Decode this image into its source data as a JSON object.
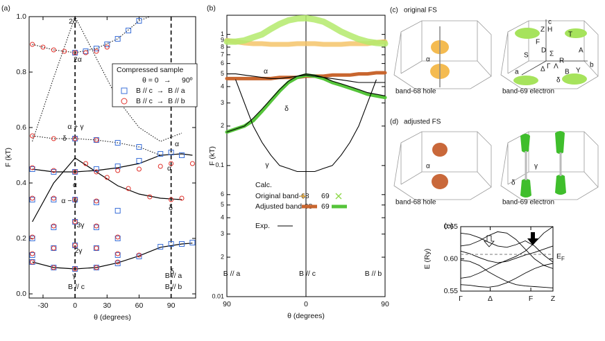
{
  "chart_data": [
    {
      "type": "scatter",
      "panel_label": "(a)",
      "xlabel": "θ (degrees)",
      "ylabel": "F (kT)",
      "xlim": [
        -43,
        113
      ],
      "ylim": [
        -0.015,
        1.0
      ],
      "xticks": [
        -30,
        0,
        30,
        60,
        90
      ],
      "yticks": [
        {
          "value": 0,
          "label": "0.0"
        },
        {
          "value": 0.2,
          "label": "0.2"
        },
        {
          "value": 0.4,
          "label": "0.4"
        },
        {
          "value": 0.6,
          "label": "0.6"
        },
        {
          "value": 0.8,
          "label": "0.8"
        },
        {
          "value": 1.0,
          "label": "1.0"
        }
      ],
      "vlines": [
        0,
        90
      ],
      "legend_title": "Compressed sample",
      "legend_header": [
        "θ = 0",
        "→",
        "90º"
      ],
      "series": [
        {
          "name": "B // c  →  B // a",
          "marker": "square",
          "color": "#3a6fd8",
          "x": [
            0,
            10,
            20,
            30,
            40,
            50,
            60,
            0,
            20,
            40,
            60,
            -40,
            -20,
            0,
            20,
            40,
            60,
            80,
            90,
            100,
            -40,
            -20,
            0,
            20,
            40,
            -40,
            -20,
            0,
            20,
            40,
            -40,
            -20,
            0,
            20,
            40,
            -40,
            -20,
            0,
            20,
            40,
            60,
            80,
            90,
            100,
            110
          ],
          "values": [
            0.87,
            0.875,
            0.885,
            0.9,
            0.92,
            0.95,
            0.985,
            0.56,
            0.555,
            0.545,
            0.53,
            0.45,
            0.44,
            0.44,
            0.45,
            0.46,
            0.48,
            0.505,
            0.51,
            0.5,
            0.34,
            0.34,
            0.34,
            0.33,
            0.3,
            0.2,
            0.24,
            0.26,
            0.24,
            0.2,
            0.14,
            0.165,
            0.175,
            0.165,
            0.14,
            0.115,
            0.095,
            0.09,
            0.095,
            0.11,
            0.135,
            0.17,
            0.18,
            0.18,
            0.185
          ]
        },
        {
          "name": "B // c  →  B // b",
          "marker": "circle",
          "color": "#e0302a",
          "x": [
            -40,
            -30,
            -20,
            -10,
            0,
            10,
            20,
            30,
            -40,
            -20,
            0,
            20,
            -40,
            -20,
            0,
            20,
            40,
            60,
            80,
            90,
            110,
            10,
            30,
            50,
            70,
            90,
            100,
            -40,
            -20,
            0,
            20,
            -40,
            -20,
            0,
            20,
            40,
            -40,
            -20,
            0,
            20,
            40,
            -40,
            -20,
            0,
            20,
            40,
            60
          ],
          "values": [
            0.9,
            0.89,
            0.88,
            0.875,
            0.87,
            0.87,
            0.875,
            0.89,
            0.57,
            0.56,
            0.56,
            0.555,
            0.455,
            0.445,
            0.44,
            0.44,
            0.445,
            0.45,
            0.46,
            0.47,
            0.47,
            0.47,
            0.42,
            0.38,
            0.35,
            0.34,
            0.345,
            0.345,
            0.345,
            0.34,
            0.335,
            0.205,
            0.245,
            0.26,
            0.245,
            0.205,
            0.145,
            0.165,
            0.175,
            0.165,
            0.145,
            0.115,
            0.095,
            0.09,
            0.095,
            0.115,
            0.14
          ]
        }
      ],
      "fit_curves": [
        {
          "style": "solid",
          "x": [
            -40,
            -20,
            0,
            20,
            40,
            60,
            80,
            100,
            110
          ],
          "values": [
            0.115,
            0.095,
            0.09,
            0.095,
            0.112,
            0.137,
            0.168,
            0.18,
            0.183
          ]
        },
        {
          "style": "solid",
          "x": [
            -40,
            -20,
            0,
            20,
            40,
            60,
            80,
            100,
            110
          ],
          "values": [
            0.45,
            0.44,
            0.44,
            0.445,
            0.455,
            0.47,
            0.5,
            0.505,
            0.5
          ]
        },
        {
          "style": "solid",
          "x": [
            -40,
            -20,
            0,
            20,
            40,
            60,
            80,
            100
          ],
          "values": [
            0.26,
            0.4,
            0.49,
            0.44,
            0.39,
            0.36,
            0.345,
            0.34
          ]
        },
        {
          "style": "dotted",
          "x": [
            -40,
            -20,
            0,
            20,
            40,
            60,
            80,
            100
          ],
          "values": [
            0.55,
            0.78,
            1.0,
            0.85,
            0.7,
            0.6,
            0.55,
            0.58
          ]
        },
        {
          "style": "dotted",
          "x": [
            -40,
            -20,
            0,
            20,
            40,
            60,
            70
          ],
          "values": [
            0.9,
            0.88,
            0.87,
            0.885,
            0.92,
            0.985,
            1.0
          ]
        },
        {
          "style": "dotted",
          "x": [
            -40,
            -20,
            0,
            20,
            40,
            60,
            80
          ],
          "values": [
            0.57,
            0.56,
            0.56,
            0.555,
            0.545,
            0.53,
            0.5
          ]
        }
      ],
      "annotations": [
        {
          "text": "2δ"
        },
        {
          "text": "2α"
        },
        {
          "text": "α + γ"
        },
        {
          "text": "δ"
        },
        {
          "text": "α"
        },
        {
          "text": "α − γ"
        },
        {
          "text": "3γ"
        },
        {
          "text": "2γ"
        },
        {
          "text": "γ"
        },
        {
          "text": "B // c"
        },
        {
          "text": "B // a",
          "color": "#3a6fd8"
        },
        {
          "text": "B // b",
          "color": "#e0302a"
        },
        {
          "text": "α",
          "color": "#3a6fd8"
        },
        {
          "text": "α",
          "color": "#e0302a"
        },
        {
          "text": "δ",
          "color": "#e0302a"
        },
        {
          "text": "δ",
          "color": "#3a6fd8"
        }
      ]
    },
    {
      "type": "line",
      "panel_label": "(b)",
      "xlabel": "θ (degrees)",
      "ylabel": "F (kT)",
      "log_y": true,
      "xlim": [
        -90,
        90
      ],
      "ylim": [
        0.01,
        1.4
      ],
      "xticks": [
        {
          "value": -90,
          "label": "90"
        },
        {
          "value": 0,
          "label": "0"
        },
        {
          "value": 90,
          "label": "90"
        }
      ],
      "yticks": [
        {
          "value": 0.01,
          "label": "0.01"
        },
        {
          "value": 0.02,
          "label": "2"
        },
        {
          "value": 0.03,
          "label": "3"
        },
        {
          "value": 0.04,
          "label": "4"
        },
        {
          "value": 0.05,
          "label": "5"
        },
        {
          "value": 0.06,
          "label": "6"
        },
        {
          "value": 0.1,
          "label": "0.1"
        },
        {
          "value": 0.2,
          "label": "2"
        },
        {
          "value": 0.3,
          "label": "3"
        },
        {
          "value": 0.4,
          "label": "4"
        },
        {
          "value": 0.5,
          "label": "5"
        },
        {
          "value": 0.6,
          "label": "6"
        },
        {
          "value": 0.7,
          "label": "7"
        },
        {
          "value": 0.8,
          "label": "8"
        },
        {
          "value": 0.9,
          "label": "9"
        },
        1
      ],
      "vlines": [
        0
      ],
      "legend_title": "Calc.",
      "x": [
        -90,
        -80,
        -70,
        -60,
        -50,
        -40,
        -30,
        -20,
        -10,
        0,
        10,
        20,
        30,
        40,
        50,
        60,
        70,
        80,
        90
      ],
      "series": [
        {
          "name": "Original band-68",
          "style": "plus",
          "color": "#f5c46a",
          "values": [
            0.9,
            0.88,
            0.86,
            0.85,
            0.85,
            0.84,
            0.84,
            0.84,
            0.85,
            0.85,
            0.85,
            0.84,
            0.84,
            0.84,
            0.85,
            0.85,
            0.85,
            0.87,
            0.88
          ]
        },
        {
          "name": "69",
          "style": "cross",
          "color": "#b4ea6c",
          "values": [
            0.88,
            0.88,
            0.9,
            0.95,
            1.0,
            1.1,
            1.2,
            1.28,
            1.32,
            1.33,
            1.3,
            1.25,
            1.15,
            1.05,
            0.98,
            0.92,
            0.88,
            0.86,
            0.85
          ]
        },
        {
          "name": "Adjusted band-68",
          "style": "thick",
          "color": "#c8662f",
          "values": [
            0.46,
            0.46,
            0.46,
            0.46,
            0.46,
            0.46,
            0.47,
            0.47,
            0.47,
            0.48,
            0.48,
            0.48,
            0.49,
            0.49,
            0.49,
            0.5,
            0.5,
            0.51,
            0.51
          ]
        },
        {
          "name": "69",
          "style": "thick",
          "color": "#55c43a",
          "values": [
            0.18,
            0.19,
            0.2,
            0.22,
            0.26,
            0.31,
            0.37,
            0.43,
            0.47,
            0.49,
            0.48,
            0.46,
            0.43,
            0.41,
            0.39,
            0.37,
            0.35,
            0.34,
            0.33
          ]
        },
        {
          "name": "Exp.",
          "style": "thin",
          "color": "#000000",
          "values": [
            0.5,
            0.5,
            0.49,
            0.48,
            0.47,
            0.46,
            0.46,
            0.47,
            0.48,
            0.49,
            0.48,
            0.47,
            0.46,
            0.45,
            0.44,
            0.43,
            0.43,
            0.43,
            0.43
          ]
        },
        {
          "style": "thin",
          "color": "#000000",
          "values": [
            0.18,
            0.19,
            0.2,
            0.23,
            0.27,
            0.32,
            0.38,
            0.44,
            0.48,
            0.5,
            0.49,
            0.47,
            0.44,
            0.42,
            0.4,
            0.38,
            0.36,
            0.35,
            0.34
          ]
        },
        {
          "style": "thin",
          "color": "#000000",
          "values": [
            null,
            0.45,
            0.3,
            0.2,
            0.15,
            0.12,
            0.1,
            0.095,
            0.09,
            0.09,
            0.09,
            0.095,
            0.1,
            0.12,
            0.15,
            0.2,
            0.3,
            0.45,
            null
          ]
        }
      ],
      "annotations": [
        {
          "text": "α"
        },
        {
          "text": "δ"
        },
        {
          "text": "γ"
        },
        {
          "text": "B // a",
          "color": "#3a6fd8"
        },
        {
          "text": "B // c"
        },
        {
          "text": "B // b",
          "color": "#e0302a"
        }
      ]
    },
    {
      "type": "line",
      "panel_label": "(e)",
      "ylabel": "E (Ry)",
      "xlim": [
        0,
        1
      ],
      "ylim": [
        0.55,
        0.65
      ],
      "xticks": [
        {
          "value": 0,
          "label": "Γ"
        },
        {
          "value": 0.32,
          "label": "Δ"
        },
        {
          "value": 0.76,
          "label": "F"
        },
        {
          "value": 1,
          "label": "Z"
        }
      ],
      "yticks": [
        0.55,
        {
          "value": 0.6,
          "label": "0.60"
        },
        0.65
      ],
      "fermi_level": 0.607,
      "fermi_label": "E",
      "fermi_sub": "F",
      "x": [
        0,
        0.1,
        0.2,
        0.3,
        0.4,
        0.5,
        0.6,
        0.7,
        0.8,
        0.9,
        1
      ],
      "series": [
        {
          "color": "#000000",
          "values": [
            0.64,
            0.638,
            0.633,
            0.626,
            0.62,
            0.618,
            0.622,
            0.628,
            0.62,
            0.606,
            0.595
          ]
        },
        {
          "color": "#000000",
          "values": [
            0.62,
            0.622,
            0.628,
            0.636,
            0.642,
            0.64,
            0.63,
            0.615,
            0.6,
            0.59,
            0.585
          ]
        },
        {
          "color": "#000000",
          "values": [
            0.612,
            0.608,
            0.602,
            0.597,
            0.594,
            0.596,
            0.601,
            0.606,
            0.61,
            0.615,
            0.62
          ]
        },
        {
          "color": "#000000",
          "values": [
            0.598,
            0.596,
            0.59,
            0.58,
            0.572,
            0.565,
            0.56,
            0.558,
            0.557,
            0.556,
            0.555
          ]
        },
        {
          "color": "#000000",
          "values": [
            0.57,
            0.572,
            0.578,
            0.585,
            0.592,
            0.598,
            0.604,
            0.612,
            0.625,
            0.64,
            0.65
          ]
        },
        {
          "color": "#000000",
          "values": [
            0.56,
            0.559,
            0.557,
            0.556,
            0.558,
            0.563,
            0.57,
            0.578,
            0.585,
            0.59,
            0.593
          ]
        }
      ]
    }
  ],
  "fermi_surfaces": {
    "original": {
      "panel_label": "(c)",
      "title": "original FS",
      "hole_label": "band-68 hole",
      "electron_label": "band-69 electron",
      "hole_orbit": "α"
    },
    "adjusted": {
      "panel_label": "(d)",
      "title": "adjusted FS",
      "hole_label": "band-68 hole",
      "electron_label": "band-69 electron",
      "hole_orbit": "α",
      "electron_orbits": [
        "γ",
        "δ"
      ]
    },
    "zone_labels": [
      "c",
      "Z",
      "H",
      "T",
      "F",
      "D",
      "Σ",
      "S",
      "Γ",
      "Λ",
      "R",
      "A",
      "Δ",
      "B",
      "Y",
      "a",
      "b",
      "δ",
      "γ"
    ]
  }
}
